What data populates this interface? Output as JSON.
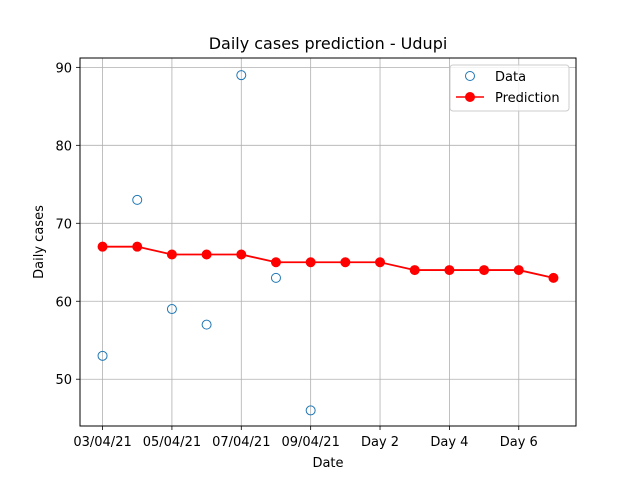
{
  "chart_data": {
    "type": "line",
    "title": "Daily cases prediction - Udupi",
    "xlabel": "Date",
    "ylabel": "Daily cases",
    "x_tick_labels": [
      "03/04/21",
      "05/04/21",
      "07/04/21",
      "09/04/21",
      "Day 2",
      "Day 4",
      "Day 6"
    ],
    "y_ticks": [
      50,
      60,
      70,
      80,
      90
    ],
    "ylim": [
      44,
      91.2
    ],
    "xlim": [
      -0.65,
      13.65
    ],
    "grid": true,
    "legend_position": "top-right",
    "series": [
      {
        "name": "Data",
        "style": "scatter",
        "color": "#1f77b4",
        "points": [
          [
            0,
            53
          ],
          [
            1,
            73
          ],
          [
            2,
            59
          ],
          [
            3,
            57
          ],
          [
            4,
            89
          ],
          [
            5,
            63
          ],
          [
            6,
            46
          ]
        ]
      },
      {
        "name": "Prediction",
        "style": "line",
        "color": "#ff0000",
        "points": [
          [
            0,
            67
          ],
          [
            1,
            67
          ],
          [
            2,
            66
          ],
          [
            3,
            66
          ],
          [
            4,
            66
          ],
          [
            5,
            65
          ],
          [
            6,
            65
          ],
          [
            7,
            65
          ],
          [
            8,
            65
          ],
          [
            9,
            64
          ],
          [
            10,
            64
          ],
          [
            11,
            64
          ],
          [
            12,
            64
          ],
          [
            13,
            63
          ]
        ]
      }
    ]
  }
}
